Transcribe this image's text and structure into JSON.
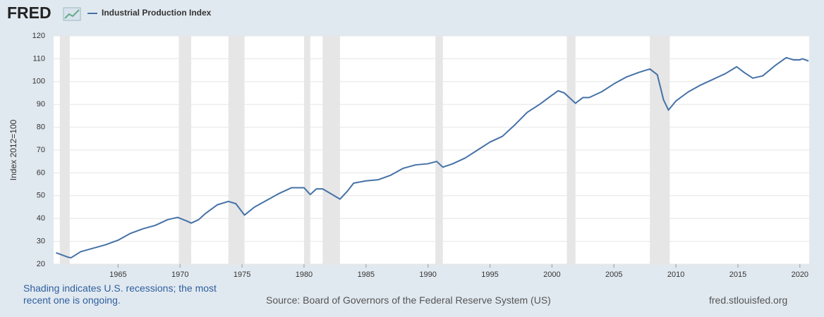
{
  "chart_data": {
    "type": "line",
    "logo": "FRED",
    "ylabel": "Index 2012=100",
    "note": "Shading indicates U.S. recessions; the most recent one is ongoing.",
    "source": "Source: Board of Governors of the Federal Reserve System (US)",
    "site": "fred.stlouisfed.org",
    "x": [
      1960.0,
      1960.5,
      1961.0,
      1961.2,
      1962,
      1963,
      1964,
      1965,
      1966,
      1967,
      1968,
      1969,
      1969.8,
      1970.5,
      1970.9,
      1971.5,
      1972,
      1973,
      1973.9,
      1974.5,
      1975.2,
      1976,
      1977,
      1978,
      1979,
      1980,
      1980.5,
      1981,
      1981.5,
      1982.9,
      1983.5,
      1984,
      1985,
      1986,
      1987,
      1988,
      1989,
      1990,
      1990.7,
      1991.2,
      1992,
      1993,
      1994,
      1995,
      1996,
      1997,
      1998,
      1999,
      2000,
      2000.5,
      2001.0,
      2001.9,
      2002.5,
      2003,
      2004,
      2005,
      2006,
      2007,
      2007.9,
      2008.5,
      2009.0,
      2009.4,
      2010,
      2011,
      2012,
      2013,
      2014,
      2014.9,
      2015.5,
      2016.2,
      2017,
      2018,
      2018.9,
      2019.5,
      2020.0,
      2020.2,
      2020.7
    ],
    "series": [
      {
        "name": "Industrial Production Index",
        "color": "#4572a7",
        "values": [
          25,
          24,
          23,
          22.8,
          25.5,
          27,
          28.5,
          30.5,
          33.5,
          35.5,
          37,
          39.5,
          40.5,
          39,
          38,
          39.5,
          42,
          46,
          47.5,
          46.5,
          41.5,
          45,
          48,
          51,
          53.5,
          53.5,
          50.5,
          53,
          53,
          48.5,
          52,
          55.5,
          56.5,
          57,
          59,
          62,
          63.5,
          64,
          65,
          62.5,
          64,
          66.5,
          70,
          73.5,
          76,
          81,
          86.5,
          90,
          94,
          96,
          95,
          90.5,
          93,
          93,
          95.5,
          99,
          102,
          104,
          105.5,
          103,
          92,
          87.5,
          91.5,
          95.5,
          98.5,
          101,
          103.5,
          106.5,
          104,
          101.5,
          102.5,
          107,
          110.5,
          109.5,
          109.5,
          110,
          109
        ]
      }
    ],
    "recessions": [
      [
        1960.3,
        1961.1
      ],
      [
        1969.9,
        1970.9
      ],
      [
        1973.9,
        1975.2
      ],
      [
        1980.0,
        1980.5
      ],
      [
        1981.5,
        1982.9
      ],
      [
        1990.6,
        1991.2
      ],
      [
        2001.2,
        2001.9
      ],
      [
        2007.9,
        2009.5
      ]
    ],
    "recession_color": "#e6e6e6",
    "xlim": [
      1959.8,
      2020.75
    ],
    "ylim": [
      20,
      120
    ],
    "xticks": [
      1965,
      1970,
      1975,
      1980,
      1985,
      1990,
      1995,
      2000,
      2005,
      2010,
      2015,
      2020
    ],
    "yticks": [
      20,
      30,
      40,
      50,
      60,
      70,
      80,
      90,
      100,
      110,
      120
    ],
    "grid": true
  }
}
